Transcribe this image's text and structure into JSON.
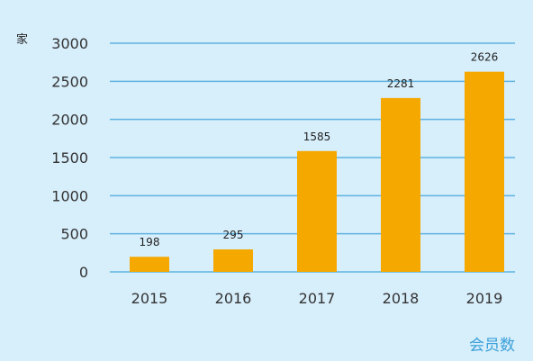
{
  "chart_data": {
    "type": "bar",
    "title": "",
    "xlabel": "",
    "ylabel": "家",
    "caption": "会员数",
    "categories": [
      "2015",
      "2016",
      "2017",
      "2018",
      "2019"
    ],
    "values": [
      198,
      295,
      1585,
      2281,
      2626
    ],
    "value_labels": [
      "198",
      "295",
      "1585",
      "2281",
      "2626"
    ],
    "ylim": [
      0,
      3000
    ],
    "yticks": [
      0,
      500,
      1000,
      1500,
      2000,
      2500,
      3000
    ],
    "ytick_labels": [
      "0",
      "500",
      "1000",
      "1500",
      "2000",
      "2500",
      "3000"
    ],
    "grid": true,
    "legend": "none"
  },
  "colors": {
    "background": "#d7eefb",
    "bar": "#f5a800",
    "gridline": "#5fb3e0",
    "caption": "#3aa0d8"
  }
}
